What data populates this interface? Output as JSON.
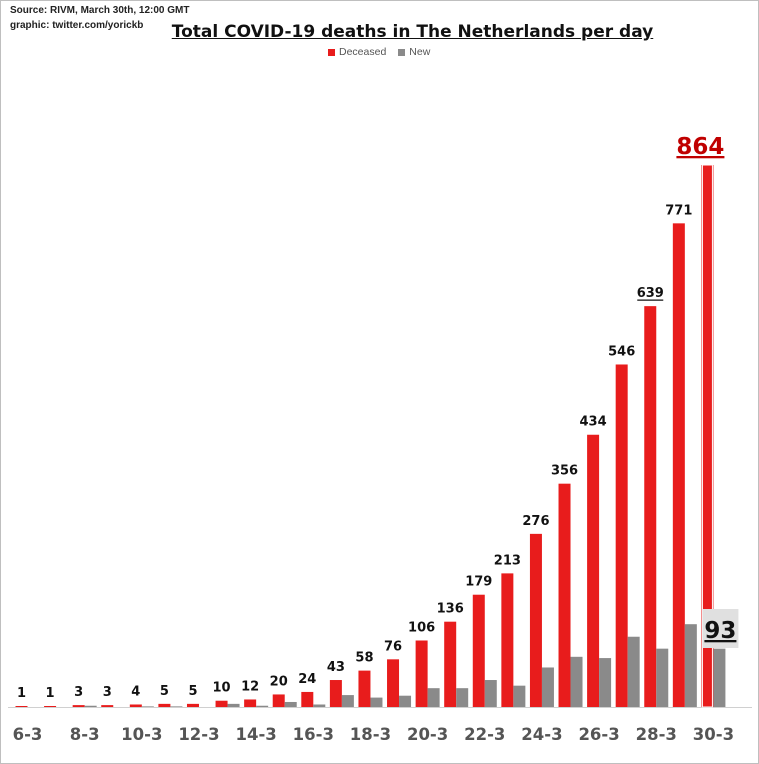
{
  "source_line": "Source: RIVM, March 30th, 12:00 GMT",
  "graphic_line": "graphic: twitter.com/yorickb",
  "colors": {
    "deceased": "#e81c1c",
    "new": "#8a8a8a",
    "highlight_red": "#c00000"
  },
  "chart_data": {
    "type": "bar",
    "title": "Total COVID-19 deaths in The Netherlands per day",
    "xlabel": "",
    "ylabel": "",
    "ylim": [
      0,
      900
    ],
    "grid": false,
    "legend_position": "top-center",
    "categories": [
      "6-3",
      "7-3",
      "8-3",
      "9-3",
      "10-3",
      "11-3",
      "12-3",
      "13-3",
      "14-3",
      "15-3",
      "16-3",
      "17-3",
      "18-3",
      "19-3",
      "20-3",
      "21-3",
      "22-3",
      "23-3",
      "24-3",
      "25-3",
      "26-3",
      "27-3",
      "28-3",
      "29-3",
      "30-3"
    ],
    "tick_labels": [
      "6-3",
      "8-3",
      "10-3",
      "12-3",
      "14-3",
      "16-3",
      "18-3",
      "20-3",
      "22-3",
      "24-3",
      "26-3",
      "28-3",
      "30-3"
    ],
    "series": [
      {
        "name": "Deceased",
        "values": [
          1,
          1,
          3,
          3,
          4,
          5,
          5,
          10,
          12,
          20,
          24,
          43,
          58,
          76,
          106,
          136,
          179,
          213,
          276,
          356,
          434,
          546,
          639,
          771,
          864
        ]
      },
      {
        "name": "New",
        "values": [
          0,
          0,
          2,
          0,
          1,
          1,
          0,
          5,
          2,
          8,
          4,
          19,
          15,
          18,
          30,
          30,
          43,
          34,
          63,
          80,
          78,
          112,
          93,
          132,
          93
        ]
      }
    ],
    "data_labels": [
      "1",
      "1",
      "3",
      "3",
      "4",
      "5",
      "5",
      "10",
      "12",
      "20",
      "24",
      "43",
      "58",
      "76",
      "106",
      "136",
      "179",
      "213",
      "276",
      "356",
      "434",
      "546",
      "639",
      "771",
      "864"
    ],
    "annotations": {
      "last_deceased": "864",
      "last_new": "93",
      "underlined": "639"
    }
  }
}
